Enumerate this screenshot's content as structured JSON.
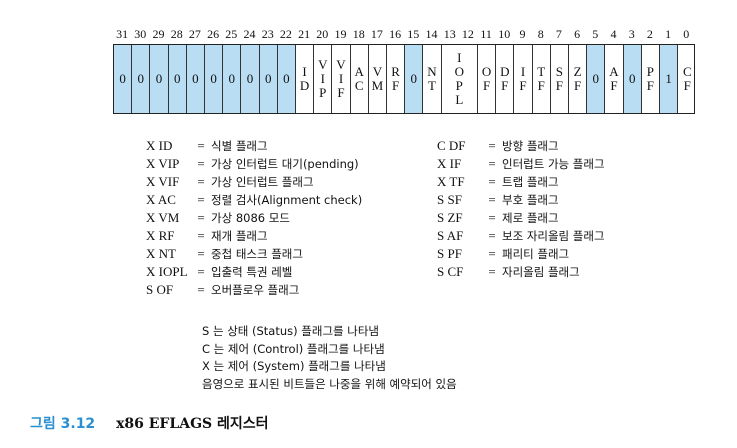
{
  "bits": [
    {
      "num": "31",
      "label": [
        "0"
      ],
      "shaded": true
    },
    {
      "num": "30",
      "label": [
        "0"
      ],
      "shaded": true
    },
    {
      "num": "29",
      "label": [
        "0"
      ],
      "shaded": true
    },
    {
      "num": "28",
      "label": [
        "0"
      ],
      "shaded": true
    },
    {
      "num": "27",
      "label": [
        "0"
      ],
      "shaded": true
    },
    {
      "num": "26",
      "label": [
        "0"
      ],
      "shaded": true
    },
    {
      "num": "25",
      "label": [
        "0"
      ],
      "shaded": true
    },
    {
      "num": "24",
      "label": [
        "0"
      ],
      "shaded": true
    },
    {
      "num": "23",
      "label": [
        "0"
      ],
      "shaded": true
    },
    {
      "num": "22",
      "label": [
        "0"
      ],
      "shaded": true
    },
    {
      "num": "21",
      "label": [
        "I",
        "D"
      ],
      "shaded": false
    },
    {
      "num": "20",
      "label": [
        "V",
        "I",
        "P"
      ],
      "shaded": false
    },
    {
      "num": "19",
      "label": [
        "V",
        "I",
        "F"
      ],
      "shaded": false
    },
    {
      "num": "18",
      "label": [
        "A",
        "C"
      ],
      "shaded": false
    },
    {
      "num": "17",
      "label": [
        "V",
        "M"
      ],
      "shaded": false
    },
    {
      "num": "16",
      "label": [
        "R",
        "F"
      ],
      "shaded": false
    },
    {
      "num": "15",
      "label": [
        "0"
      ],
      "shaded": true
    },
    {
      "num": "14",
      "label": [
        "N",
        "T"
      ],
      "shaded": false
    },
    {
      "num": "13 12",
      "label": [
        "I",
        "O",
        "P",
        "L"
      ],
      "shaded": false,
      "double": true
    },
    {
      "num": "11",
      "label": [
        "O",
        "F"
      ],
      "shaded": false
    },
    {
      "num": "10",
      "label": [
        "D",
        "F"
      ],
      "shaded": false
    },
    {
      "num": "9",
      "label": [
        "I",
        "F"
      ],
      "shaded": false
    },
    {
      "num": "8",
      "label": [
        "T",
        "F"
      ],
      "shaded": false
    },
    {
      "num": "7",
      "label": [
        "S",
        "F"
      ],
      "shaded": false
    },
    {
      "num": "6",
      "label": [
        "Z",
        "F"
      ],
      "shaded": false
    },
    {
      "num": "5",
      "label": [
        "0"
      ],
      "shaded": true
    },
    {
      "num": "4",
      "label": [
        "A",
        "F"
      ],
      "shaded": false
    },
    {
      "num": "3",
      "label": [
        "0"
      ],
      "shaded": true
    },
    {
      "num": "2",
      "label": [
        "P",
        "F"
      ],
      "shaded": false
    },
    {
      "num": "1",
      "label": [
        "1"
      ],
      "shaded": true
    },
    {
      "num": "0",
      "label": [
        "C",
        "F"
      ],
      "shaded": false
    }
  ],
  "legend_left": [
    {
      "abbr": "X ID",
      "eq": "=",
      "desc": "식별 플래그"
    },
    {
      "abbr": "X VIP",
      "eq": "=",
      "desc": "가상 인터럽트 대기(pending)"
    },
    {
      "abbr": "X VIF",
      "eq": "=",
      "desc": "가상 인터럽트 플래그"
    },
    {
      "abbr": "X AC",
      "eq": "=",
      "desc": "정렬 검사(Alignment check)"
    },
    {
      "abbr": "X VM",
      "eq": "=",
      "desc": "가상 8086 모드"
    },
    {
      "abbr": "X RF",
      "eq": "=",
      "desc": "재개 플래그"
    },
    {
      "abbr": "X NT",
      "eq": "=",
      "desc": "중첩 태스크 플래그"
    },
    {
      "abbr": "X IOPL",
      "eq": "=",
      "desc": "입출력 특권 레벨"
    },
    {
      "abbr": "S OF",
      "eq": "=",
      "desc": "오버플로우 플래그"
    }
  ],
  "legend_right": [
    {
      "abbr": "C DF",
      "eq": "=",
      "desc": "방향 플래그"
    },
    {
      "abbr": "X IF",
      "eq": "=",
      "desc": "인터럽트 가능 플래그"
    },
    {
      "abbr": "X TF",
      "eq": "=",
      "desc": "트랩 플래그"
    },
    {
      "abbr": "S SF",
      "eq": "=",
      "desc": "부호 플래그"
    },
    {
      "abbr": "S ZF",
      "eq": "=",
      "desc": "제로 플래그"
    },
    {
      "abbr": "S AF",
      "eq": "=",
      "desc": "보조 자리올림 플래그"
    },
    {
      "abbr": "S PF",
      "eq": "=",
      "desc": "패리티 플래그"
    },
    {
      "abbr": "S CF",
      "eq": "=",
      "desc": "자리올림 플래그"
    }
  ],
  "notes": [
    "S 는 상태 (Status) 플래그를 나타냄",
    "C 는 제어 (Control) 플래그를 나타냄",
    "X 는 제어 (System) 플래그를 나타냄",
    "음영으로 표시된 비트들은 나중을 위해 예약되어 있음"
  ],
  "caption": {
    "number": "그림 3.12",
    "title": "x86 EFLAGS 레지스터"
  },
  "colors": {
    "reserved_shade": "#b9def4",
    "caption_accent": "#2a8fd0"
  }
}
